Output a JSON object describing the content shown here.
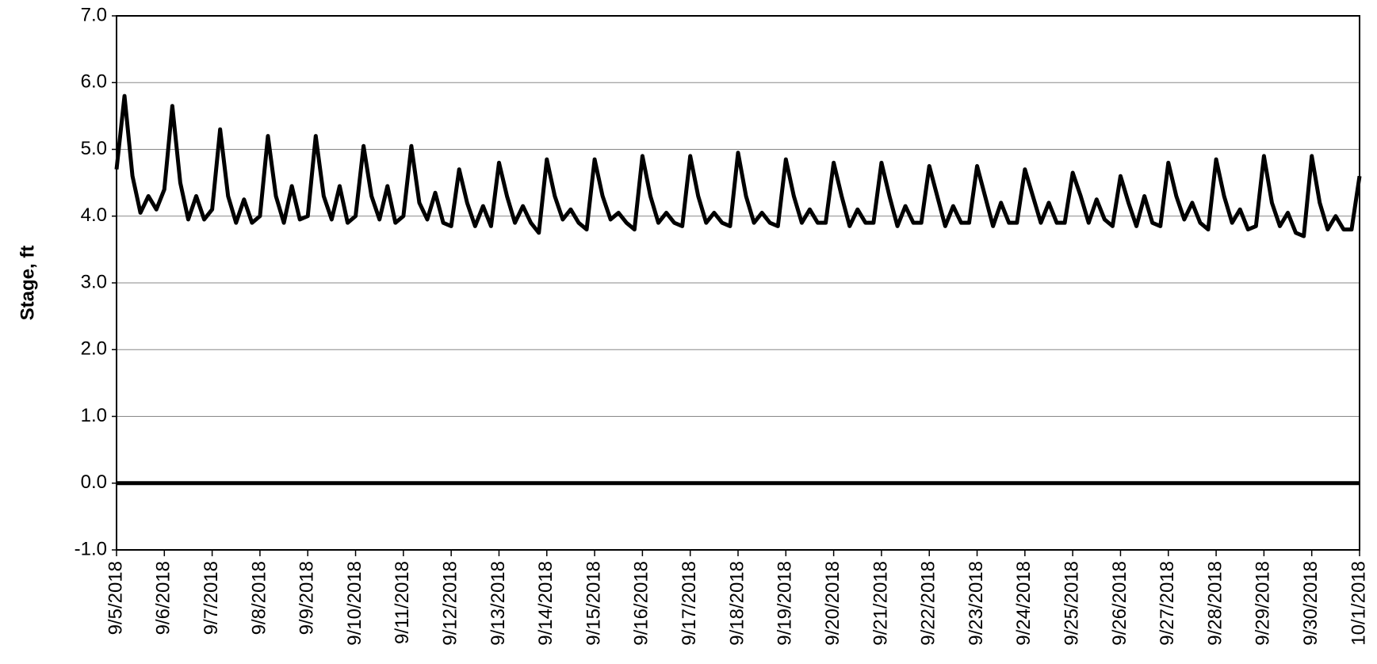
{
  "chart_data": {
    "type": "line",
    "ylabel": "Stage, ft",
    "categories": [
      "9/5/2018",
      null,
      null,
      null,
      null,
      null,
      "9/6/2018",
      null,
      null,
      null,
      null,
      null,
      "9/7/2018",
      null,
      null,
      null,
      null,
      null,
      "9/8/2018",
      null,
      null,
      null,
      null,
      null,
      "9/9/2018",
      null,
      null,
      null,
      null,
      null,
      "9/10/2018",
      null,
      null,
      null,
      null,
      null,
      "9/11/2018",
      null,
      null,
      null,
      null,
      null,
      "9/12/2018",
      null,
      null,
      null,
      null,
      null,
      "9/13/2018",
      null,
      null,
      null,
      null,
      null,
      "9/14/2018",
      null,
      null,
      null,
      null,
      null,
      "9/15/2018",
      null,
      null,
      null,
      null,
      null,
      "9/16/2018",
      null,
      null,
      null,
      null,
      null,
      "9/17/2018",
      null,
      null,
      null,
      null,
      null,
      "9/18/2018",
      null,
      null,
      null,
      null,
      null,
      "9/19/2018",
      null,
      null,
      null,
      null,
      null,
      "9/20/2018",
      null,
      null,
      null,
      null,
      null,
      "9/21/2018",
      null,
      null,
      null,
      null,
      null,
      "9/22/2018",
      null,
      null,
      null,
      null,
      null,
      "9/23/2018",
      null,
      null,
      null,
      null,
      null,
      "9/24/2018",
      null,
      null,
      null,
      null,
      null,
      "9/25/2018",
      null,
      null,
      null,
      null,
      null,
      "9/26/2018",
      null,
      null,
      null,
      null,
      null,
      "9/27/2018",
      null,
      null,
      null,
      null,
      null,
      "9/28/2018",
      null,
      null,
      null,
      null,
      null,
      "9/29/2018",
      null,
      null,
      null,
      null,
      null,
      "9/30/2018",
      null,
      null,
      null,
      null,
      null,
      "10/1/2018"
    ],
    "series": [
      {
        "name": "Stage",
        "color": "#000000",
        "values": [
          4.7,
          5.8,
          4.6,
          4.05,
          4.3,
          4.1,
          4.4,
          5.65,
          4.5,
          3.95,
          4.3,
          3.95,
          4.1,
          5.3,
          4.3,
          3.9,
          4.25,
          3.9,
          4.0,
          5.2,
          4.3,
          3.9,
          4.45,
          3.95,
          4.0,
          5.2,
          4.3,
          3.95,
          4.45,
          3.9,
          4.0,
          5.05,
          4.3,
          3.95,
          4.45,
          3.9,
          4.0,
          5.05,
          4.2,
          3.95,
          4.35,
          3.9,
          3.85,
          4.7,
          4.2,
          3.85,
          4.15,
          3.85,
          4.8,
          4.3,
          3.9,
          4.15,
          3.9,
          3.75,
          4.85,
          4.3,
          3.95,
          4.1,
          3.9,
          3.8,
          4.85,
          4.3,
          3.95,
          4.05,
          3.9,
          3.8,
          4.9,
          4.3,
          3.9,
          4.05,
          3.9,
          3.85,
          4.9,
          4.3,
          3.9,
          4.05,
          3.9,
          3.85,
          4.95,
          4.3,
          3.9,
          4.05,
          3.9,
          3.85,
          4.85,
          4.3,
          3.9,
          4.1,
          3.9,
          3.9,
          4.8,
          4.3,
          3.85,
          4.1,
          3.9,
          3.9,
          4.8,
          4.3,
          3.85,
          4.15,
          3.9,
          3.9,
          4.75,
          4.3,
          3.85,
          4.15,
          3.9,
          3.9,
          4.75,
          4.3,
          3.85,
          4.2,
          3.9,
          3.9,
          4.7,
          4.3,
          3.9,
          4.2,
          3.9,
          3.9,
          4.65,
          4.3,
          3.9,
          4.25,
          3.95,
          3.85,
          4.6,
          4.2,
          3.85,
          4.3,
          3.9,
          3.85,
          4.8,
          4.3,
          3.95,
          4.2,
          3.9,
          3.8,
          4.85,
          4.3,
          3.9,
          4.1,
          3.8,
          3.85,
          4.9,
          4.2,
          3.85,
          4.05,
          3.75,
          3.7,
          4.9,
          4.2,
          3.8,
          4.0,
          3.8,
          3.8,
          4.6
        ]
      }
    ],
    "ylim": [
      -1,
      7
    ],
    "yticks": [
      {
        "value": -1,
        "label": "-1.0"
      },
      {
        "value": 0,
        "label": "0.0"
      },
      {
        "value": 1,
        "label": "1.0"
      },
      {
        "value": 2,
        "label": "2.0"
      },
      {
        "value": 3,
        "label": "3.0"
      },
      {
        "value": 4,
        "label": "4.0"
      },
      {
        "value": 5,
        "label": "5.0"
      },
      {
        "value": 6,
        "label": "6.0"
      },
      {
        "value": 7,
        "label": "7.0"
      }
    ],
    "grid": true
  }
}
